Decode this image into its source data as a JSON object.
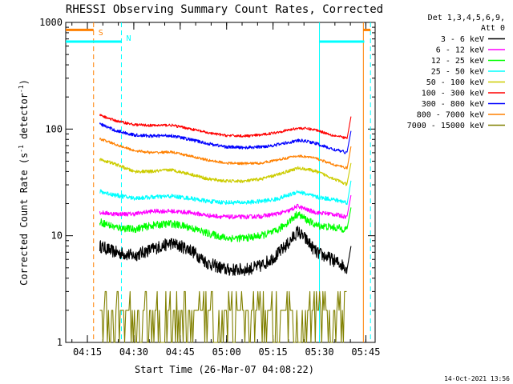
{
  "chart_data": {
    "type": "line",
    "title": "RHESSI Observing Summary Count Rates, Corrected",
    "xlabel": "Start Time (26-Mar-07 04:08:22)",
    "ylabel": "Corrected Count Rate (s",
    "ylabel_sup1": "-1",
    "ylabel_mid": " detector",
    "ylabel_sup2": "-1",
    "ylabel_end": ")",
    "y_scale": "log",
    "ylim": [
      1,
      1000
    ],
    "xlim_minutes": [
      0,
      100
    ],
    "x_ticks": [
      {
        "minute": 7,
        "label": "04:15"
      },
      {
        "minute": 22,
        "label": "04:30"
      },
      {
        "minute": 37,
        "label": "04:45"
      },
      {
        "minute": 52,
        "label": "05:00"
      },
      {
        "minute": 67,
        "label": "05:15"
      },
      {
        "minute": 82,
        "label": "05:30"
      },
      {
        "minute": 97,
        "label": "05:45"
      }
    ],
    "y_ticks": [
      {
        "value": 1,
        "label": "1"
      },
      {
        "value": 10,
        "label": "10"
      },
      {
        "value": 100,
        "label": "100"
      },
      {
        "value": 1000,
        "label": "1000"
      }
    ],
    "legend": {
      "header": [
        "Det 1,3,4,5,6,9,",
        "Att 0"
      ],
      "placement": "right"
    },
    "footer_timestamp": "14-Oct-2021 13:56",
    "markers": [
      {
        "label": "S",
        "minute": 9,
        "color": "#ff8000"
      },
      {
        "label": "N",
        "minute": 18,
        "color": "#00ffff"
      }
    ],
    "top_bars": [
      {
        "color": "#ff8000",
        "level": 850,
        "segments": [
          [
            0,
            9
          ],
          [
            96.2,
            98.5
          ]
        ]
      },
      {
        "color": "#00ffff",
        "level": 660,
        "segments": [
          [
            0,
            18
          ],
          [
            82,
            96.5
          ]
        ]
      }
    ],
    "vlines": [
      {
        "minute": 9,
        "color": "#ff8000",
        "dashed": true
      },
      {
        "minute": 18,
        "color": "#00ffff",
        "dashed": true
      },
      {
        "minute": 82,
        "color": "#00ffff",
        "dashed": false
      },
      {
        "minute": 96.2,
        "color": "#ff8000",
        "dashed": false
      },
      {
        "minute": 98.5,
        "color": "#00ffff",
        "dashed": true
      }
    ],
    "series": [
      {
        "name": "3 - 6 keV",
        "color": "#000000",
        "noise": 0.06,
        "points": [
          [
            11,
            8
          ],
          [
            16,
            7
          ],
          [
            22,
            6.5
          ],
          [
            28,
            7.5
          ],
          [
            34,
            8.5
          ],
          [
            40,
            7.5
          ],
          [
            46,
            5.5
          ],
          [
            52,
            4.8
          ],
          [
            58,
            4.8
          ],
          [
            63,
            5.2
          ],
          [
            68,
            6.5
          ],
          [
            72,
            8.5
          ],
          [
            75,
            11
          ],
          [
            78,
            9
          ],
          [
            81,
            7
          ],
          [
            86,
            6
          ],
          [
            91,
            5
          ]
        ]
      },
      {
        "name": "6 - 12 keV",
        "color": "#ff00ff",
        "noise": 0.02,
        "points": [
          [
            11,
            16.5
          ],
          [
            16,
            16
          ],
          [
            22,
            16
          ],
          [
            28,
            17
          ],
          [
            34,
            17
          ],
          [
            40,
            16.5
          ],
          [
            46,
            15.5
          ],
          [
            52,
            15
          ],
          [
            58,
            15
          ],
          [
            63,
            15.2
          ],
          [
            68,
            16
          ],
          [
            72,
            17
          ],
          [
            75,
            19
          ],
          [
            78,
            17.5
          ],
          [
            81,
            16.5
          ],
          [
            86,
            16
          ],
          [
            91,
            15
          ]
        ]
      },
      {
        "name": "12 - 25 keV",
        "color": "#00ff00",
        "noise": 0.035,
        "points": [
          [
            11,
            13.5
          ],
          [
            16,
            12
          ],
          [
            22,
            11.5
          ],
          [
            28,
            12.5
          ],
          [
            34,
            13
          ],
          [
            40,
            12
          ],
          [
            46,
            10.5
          ],
          [
            52,
            9.5
          ],
          [
            58,
            9.5
          ],
          [
            63,
            10
          ],
          [
            68,
            11
          ],
          [
            72,
            13.5
          ],
          [
            75,
            16
          ],
          [
            78,
            14
          ],
          [
            81,
            12.5
          ],
          [
            86,
            12
          ],
          [
            91,
            11.5
          ]
        ]
      },
      {
        "name": "25 - 50 keV",
        "color": "#00ffff",
        "noise": 0.02,
        "points": [
          [
            11,
            26
          ],
          [
            16,
            24
          ],
          [
            22,
            22.5
          ],
          [
            28,
            23
          ],
          [
            34,
            23.5
          ],
          [
            40,
            22.5
          ],
          [
            46,
            21
          ],
          [
            52,
            20.5
          ],
          [
            58,
            20.5
          ],
          [
            63,
            21
          ],
          [
            68,
            22
          ],
          [
            72,
            24
          ],
          [
            75,
            26
          ],
          [
            78,
            24.5
          ],
          [
            81,
            23
          ],
          [
            86,
            22
          ],
          [
            91,
            20.5
          ]
        ]
      },
      {
        "name": "50 - 100 keV",
        "color": "#cccc00",
        "noise": 0.015,
        "points": [
          [
            11,
            52
          ],
          [
            16,
            47
          ],
          [
            22,
            40
          ],
          [
            28,
            40
          ],
          [
            34,
            41.5
          ],
          [
            40,
            38
          ],
          [
            46,
            34
          ],
          [
            52,
            32.5
          ],
          [
            58,
            32.5
          ],
          [
            63,
            34
          ],
          [
            68,
            37
          ],
          [
            72,
            40.5
          ],
          [
            75,
            43
          ],
          [
            78,
            42
          ],
          [
            81,
            40
          ],
          [
            86,
            35
          ],
          [
            91,
            30
          ]
        ]
      },
      {
        "name": "100 - 300 keV",
        "color": "#ff0000",
        "noise": 0.012,
        "points": [
          [
            11,
            135
          ],
          [
            16,
            120
          ],
          [
            22,
            110
          ],
          [
            28,
            108
          ],
          [
            34,
            109
          ],
          [
            40,
            101
          ],
          [
            46,
            92
          ],
          [
            52,
            87
          ],
          [
            58,
            86
          ],
          [
            63,
            88
          ],
          [
            68,
            93
          ],
          [
            72,
            98
          ],
          [
            75,
            102
          ],
          [
            78,
            101
          ],
          [
            81,
            98
          ],
          [
            86,
            88
          ],
          [
            91,
            82
          ]
        ]
      },
      {
        "name": "300 - 800 keV",
        "color": "#0000ff",
        "noise": 0.015,
        "points": [
          [
            11,
            112
          ],
          [
            16,
            97
          ],
          [
            22,
            88
          ],
          [
            28,
            86
          ],
          [
            34,
            87
          ],
          [
            40,
            80
          ],
          [
            46,
            73
          ],
          [
            52,
            68
          ],
          [
            58,
            67
          ],
          [
            63,
            68
          ],
          [
            68,
            71
          ],
          [
            72,
            75
          ],
          [
            75,
            78
          ],
          [
            78,
            77
          ],
          [
            81,
            73
          ],
          [
            86,
            65
          ],
          [
            91,
            60
          ]
        ]
      },
      {
        "name": "800 - 7000 keV",
        "color": "#ff8000",
        "noise": 0.012,
        "points": [
          [
            11,
            81
          ],
          [
            16,
            72
          ],
          [
            22,
            63
          ],
          [
            28,
            60
          ],
          [
            34,
            61
          ],
          [
            40,
            56
          ],
          [
            46,
            51
          ],
          [
            52,
            48
          ],
          [
            58,
            47.5
          ],
          [
            63,
            48
          ],
          [
            68,
            51
          ],
          [
            72,
            54
          ],
          [
            75,
            56
          ],
          [
            78,
            55
          ],
          [
            81,
            53
          ],
          [
            86,
            47
          ],
          [
            91,
            43
          ]
        ]
      },
      {
        "name": "7000 - 15000 keV",
        "color": "#808000",
        "noise": 0,
        "points": [
          [
            11,
            1.5
          ],
          [
            91,
            1.5
          ]
        ]
      }
    ]
  }
}
